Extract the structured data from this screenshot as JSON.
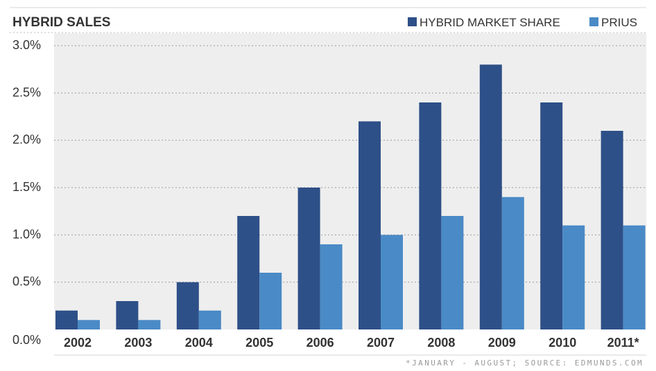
{
  "chart_data": {
    "type": "bar",
    "title": "HYBRID SALES",
    "categories": [
      "2002",
      "2003",
      "2004",
      "2005",
      "2006",
      "2007",
      "2008",
      "2009",
      "2010",
      "2011*"
    ],
    "series": [
      {
        "name": "HYBRID MARKET SHARE",
        "color": "#2e5088",
        "values": [
          0.2,
          0.3,
          0.5,
          1.2,
          1.5,
          2.2,
          2.4,
          2.8,
          2.4,
          2.1
        ]
      },
      {
        "name": "PRIUS",
        "color": "#4a8ac6",
        "values": [
          0.1,
          0.1,
          0.2,
          0.6,
          0.9,
          1.0,
          1.2,
          1.4,
          1.1,
          1.1
        ]
      }
    ],
    "yticks": [
      "0.0%",
      "0.5%",
      "1.0%",
      "1.5%",
      "2.0%",
      "2.5%",
      "3.0%"
    ],
    "ylim": [
      0,
      3.0
    ],
    "ystep": 0.5,
    "xlabel": "",
    "ylabel": "",
    "legend": "top-right",
    "grid": true,
    "plot_background": "#eeeeee",
    "footnote": "*JANUARY - AUGUST; SOURCE: EDMUNDS.COM"
  }
}
